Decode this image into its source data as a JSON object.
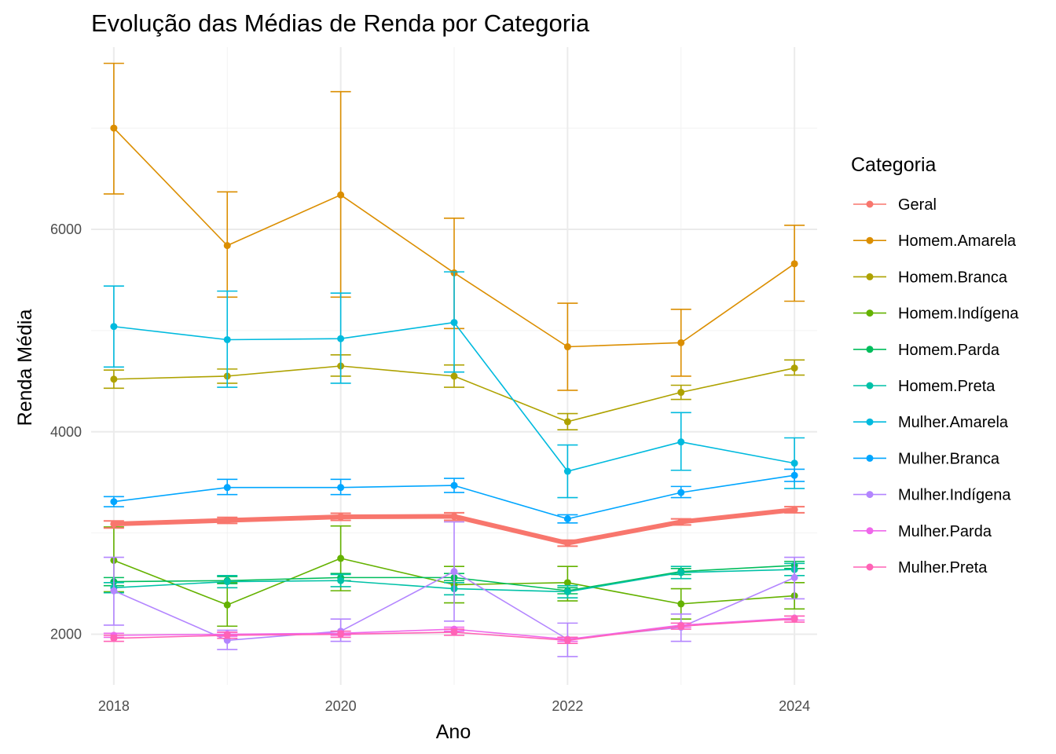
{
  "chart_data": {
    "type": "line",
    "title": "Evolução das Médias de Renda por Categoria",
    "xlabel": "Ano",
    "ylabel": "Renda Média",
    "xlim": [
      2017.8,
      2024.2
    ],
    "ylim": [
      1500,
      7800
    ],
    "x_ticks": [
      2018,
      2020,
      2022,
      2024
    ],
    "y_ticks": [
      2000,
      4000,
      6000
    ],
    "grid": true,
    "legend_title": "Categoria",
    "legend_position": "right",
    "x": [
      2018,
      2019,
      2020,
      2021,
      2022,
      2023,
      2024
    ],
    "series": [
      {
        "name": "Geral",
        "color": "#F8766D",
        "thick": true,
        "values": [
          3090,
          3125,
          3160,
          3165,
          2900,
          3110,
          3230
        ],
        "err": [
          [
            3050,
            3120
          ],
          [
            3095,
            3155
          ],
          [
            3125,
            3195
          ],
          [
            3125,
            3200
          ],
          [
            2870,
            2930
          ],
          [
            3080,
            3140
          ],
          [
            3200,
            3260
          ]
        ]
      },
      {
        "name": "Homem.Amarela",
        "color": "#DB8E00",
        "values": [
          7000,
          5840,
          6340,
          5570,
          4840,
          4880,
          5660
        ],
        "err": [
          [
            6350,
            7640
          ],
          [
            5330,
            6370
          ],
          [
            5330,
            7360
          ],
          [
            5020,
            6110
          ],
          [
            4410,
            5270
          ],
          [
            4550,
            5210
          ],
          [
            5290,
            6040
          ]
        ]
      },
      {
        "name": "Homem.Branca",
        "color": "#AEA200",
        "values": [
          4520,
          4550,
          4650,
          4550,
          4100,
          4390,
          4630
        ],
        "err": [
          [
            4430,
            4610
          ],
          [
            4480,
            4620
          ],
          [
            4550,
            4760
          ],
          [
            4440,
            4660
          ],
          [
            4020,
            4180
          ],
          [
            4320,
            4460
          ],
          [
            4560,
            4710
          ]
        ]
      },
      {
        "name": "Homem.Indígena",
        "color": "#64B200",
        "values": [
          2730,
          2290,
          2750,
          2490,
          2510,
          2300,
          2380
        ],
        "err": [
          [
            2420,
            3060
          ],
          [
            2080,
            2510
          ],
          [
            2430,
            3070
          ],
          [
            2310,
            2670
          ],
          [
            2330,
            2670
          ],
          [
            2150,
            2450
          ],
          [
            2250,
            2510
          ]
        ]
      },
      {
        "name": "Homem.Parda",
        "color": "#00BD5C",
        "values": [
          2520,
          2530,
          2560,
          2560,
          2430,
          2620,
          2680
        ],
        "err": [
          [
            2480,
            2560
          ],
          [
            2500,
            2570
          ],
          [
            2530,
            2600
          ],
          [
            2530,
            2600
          ],
          [
            2400,
            2460
          ],
          [
            2590,
            2650
          ],
          [
            2650,
            2720
          ]
        ]
      },
      {
        "name": "Homem.Preta",
        "color": "#00C1A7",
        "values": [
          2460,
          2520,
          2530,
          2450,
          2420,
          2610,
          2640
        ],
        "err": [
          [
            2410,
            2510
          ],
          [
            2460,
            2580
          ],
          [
            2470,
            2590
          ],
          [
            2390,
            2510
          ],
          [
            2360,
            2480
          ],
          [
            2550,
            2670
          ],
          [
            2580,
            2700
          ]
        ]
      },
      {
        "name": "Mulher.Amarela",
        "color": "#00BADE",
        "values": [
          5040,
          4910,
          4920,
          5080,
          3610,
          3900,
          3690
        ],
        "err": [
          [
            4640,
            5440
          ],
          [
            4440,
            5390
          ],
          [
            4480,
            5370
          ],
          [
            4590,
            5580
          ],
          [
            3350,
            3870
          ],
          [
            3620,
            4190
          ],
          [
            3440,
            3940
          ]
        ]
      },
      {
        "name": "Mulher.Branca",
        "color": "#00A6FF",
        "values": [
          3310,
          3450,
          3450,
          3470,
          3140,
          3400,
          3570
        ],
        "err": [
          [
            3260,
            3360
          ],
          [
            3380,
            3530
          ],
          [
            3380,
            3530
          ],
          [
            3400,
            3540
          ],
          [
            3100,
            3180
          ],
          [
            3350,
            3460
          ],
          [
            3510,
            3630
          ]
        ]
      },
      {
        "name": "Mulher.Indígena",
        "color": "#B385FF",
        "values": [
          2430,
          1940,
          2030,
          2620,
          1950,
          2070,
          2560
        ],
        "err": [
          [
            2090,
            2760
          ],
          [
            1850,
            2040
          ],
          [
            1930,
            2150
          ],
          [
            2130,
            3110
          ],
          [
            1780,
            2110
          ],
          [
            1930,
            2200
          ],
          [
            2350,
            2760
          ]
        ]
      },
      {
        "name": "Mulher.Parda",
        "color": "#EF67EB",
        "values": [
          1990,
          2000,
          2010,
          2050,
          1950,
          2090,
          2160
        ],
        "err": [
          [
            1970,
            2010
          ],
          [
            1980,
            2020
          ],
          [
            1990,
            2030
          ],
          [
            2030,
            2070
          ],
          [
            1930,
            1970
          ],
          [
            2070,
            2110
          ],
          [
            2140,
            2180
          ]
        ]
      },
      {
        "name": "Mulher.Preta",
        "color": "#FF63B6",
        "values": [
          1960,
          1990,
          2000,
          2020,
          1940,
          2080,
          2150
        ],
        "err": [
          [
            1930,
            1990
          ],
          [
            1960,
            2020
          ],
          [
            1970,
            2030
          ],
          [
            1990,
            2050
          ],
          [
            1910,
            1970
          ],
          [
            2050,
            2110
          ],
          [
            2120,
            2180
          ]
        ]
      }
    ]
  }
}
